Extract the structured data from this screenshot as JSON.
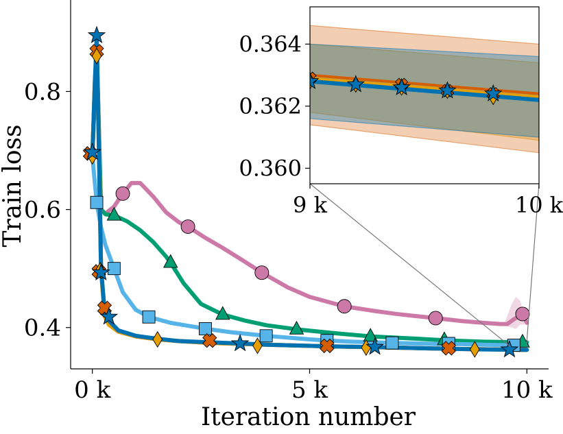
{
  "chart_data": [
    {
      "type": "line",
      "xlabel": "Iteration number",
      "ylabel": "Train loss",
      "xlim": [
        -500,
        10500
      ],
      "ylim": [
        0.33,
        0.955
      ],
      "xticks": [
        0,
        5000,
        10000
      ],
      "xtick_labels": [
        "0 k",
        "5 k",
        "10 k"
      ],
      "yticks": [
        0.4,
        0.6,
        0.8
      ],
      "ytick_labels": [
        "0.4",
        "0.6",
        "0.8"
      ],
      "grid": false,
      "legend": "none",
      "series": [
        {
          "color": "#CC79A7",
          "marker": "circle",
          "x": [
            0,
            100,
            200,
            300,
            500,
            700,
            900,
            1100,
            1400,
            1700,
            2000,
            2200,
            2600,
            3000,
            3500,
            3900,
            4500,
            5000,
            5500,
            5800,
            6500,
            7000,
            7500,
            7900,
            8500,
            9000,
            9400,
            9550,
            9700,
            9900,
            10000
          ],
          "y": [
            0.69,
            0.875,
            0.6,
            0.593,
            0.605,
            0.627,
            0.645,
            0.645,
            0.622,
            0.595,
            0.578,
            0.571,
            0.552,
            0.535,
            0.512,
            0.493,
            0.468,
            0.452,
            0.442,
            0.436,
            0.428,
            0.423,
            0.419,
            0.416,
            0.411,
            0.408,
            0.406,
            0.406,
            0.414,
            0.423,
            0.408
          ],
          "markers_x": [
            700,
            2200,
            3900,
            5800,
            7900,
            9900
          ],
          "markers_y": [
            0.627,
            0.571,
            0.493,
            0.436,
            0.416,
            0.423
          ]
        },
        {
          "color": "#009E73",
          "marker": "triangle",
          "x": [
            0,
            100,
            200,
            300,
            500,
            800,
            1100,
            1400,
            1700,
            1800,
            2100,
            2500,
            3000,
            3500,
            4000,
            4700,
            5500,
            6400,
            7500,
            8200,
            9000,
            9900,
            10000
          ],
          "y": [
            0.69,
            0.875,
            0.6,
            0.592,
            0.59,
            0.58,
            0.565,
            0.545,
            0.52,
            0.51,
            0.475,
            0.44,
            0.422,
            0.412,
            0.404,
            0.397,
            0.391,
            0.385,
            0.381,
            0.378,
            0.376,
            0.375,
            0.375
          ],
          "markers_x": [
            500,
            1800,
            3000,
            4700,
            6400,
            8100,
            9900
          ],
          "markers_y": [
            0.59,
            0.51,
            0.422,
            0.397,
            0.385,
            0.379,
            0.375
          ]
        },
        {
          "color": "#56B4E9",
          "marker": "square",
          "x": [
            0,
            100,
            200,
            300,
            500,
            700,
            1000,
            1300,
            1800,
            2600,
            3200,
            4000,
            5000,
            5400,
            6000,
            6900,
            8000,
            8500,
            9000,
            9700,
            10000
          ],
          "y": [
            0.69,
            0.612,
            0.57,
            0.54,
            0.5,
            0.46,
            0.43,
            0.418,
            0.408,
            0.398,
            0.392,
            0.386,
            0.38,
            0.378,
            0.376,
            0.374,
            0.372,
            0.372,
            0.371,
            0.37,
            0.37
          ],
          "markers_x": [
            100,
            500,
            1300,
            2600,
            4000,
            5400,
            6900,
            8200,
            9700
          ],
          "markers_y": [
            0.612,
            0.5,
            0.418,
            0.398,
            0.386,
            0.378,
            0.374,
            0.373,
            0.37
          ]
        },
        {
          "color": "#D55E00",
          "marker": "plus",
          "x": [
            0,
            60,
            100,
            150,
            200,
            280,
            380,
            600,
            1000,
            1500,
            2000,
            2700,
            4000,
            5500,
            7000,
            8200,
            9000,
            10000
          ],
          "y": [
            0.69,
            0.82,
            0.86,
            0.72,
            0.5,
            0.42,
            0.405,
            0.393,
            0.385,
            0.38,
            0.377,
            0.374,
            0.371,
            0.368,
            0.366,
            0.364,
            0.3632,
            0.3622
          ],
          "markers_x": [
            -50,
            100,
            150,
            280,
            2700,
            5400,
            8200
          ],
          "markers_y": [
            0.695,
            0.868,
            0.495,
            0.433,
            0.378,
            0.369,
            0.365
          ]
        },
        {
          "color": "#E69F00",
          "marker": "diamond",
          "x": [
            0,
            60,
            100,
            150,
            200,
            280,
            380,
            600,
            1000,
            1500,
            2000,
            2700,
            4000,
            5500,
            7000,
            8200,
            9000,
            10000
          ],
          "y": [
            0.69,
            0.82,
            0.86,
            0.72,
            0.5,
            0.42,
            0.405,
            0.393,
            0.385,
            0.38,
            0.377,
            0.374,
            0.371,
            0.368,
            0.366,
            0.364,
            0.3632,
            0.3622
          ],
          "markers_x": [
            0,
            100,
            180,
            1500,
            3800,
            6300,
            8800
          ],
          "markers_y": [
            0.69,
            0.86,
            0.497,
            0.38,
            0.369,
            0.366,
            0.363
          ]
        },
        {
          "color": "#0072B2",
          "marker": "star",
          "x": [
            0,
            50,
            100,
            150,
            200,
            280,
            380,
            600,
            1000,
            1500,
            2000,
            2700,
            3400,
            4000,
            5500,
            6500,
            7000,
            8200,
            9000,
            9600,
            10000
          ],
          "y": [
            0.69,
            0.8,
            0.895,
            0.7,
            0.5,
            0.43,
            0.412,
            0.395,
            0.386,
            0.381,
            0.377,
            0.375,
            0.373,
            0.371,
            0.368,
            0.367,
            0.366,
            0.364,
            0.363,
            0.3626,
            0.3622
          ],
          "markers_x": [
            0,
            100,
            200,
            380,
            3400,
            6500,
            9600
          ],
          "markers_y": [
            0.697,
            0.895,
            0.493,
            0.418,
            0.373,
            0.367,
            0.3626
          ]
        }
      ]
    },
    {
      "type": "line",
      "xlim": [
        9000,
        10000
      ],
      "ylim": [
        0.3595,
        0.3652
      ],
      "xticks": [
        9000,
        10000
      ],
      "xtick_labels": [
        "9 k",
        "10 k"
      ],
      "yticks": [
        0.36,
        0.362,
        0.364
      ],
      "ytick_labels": [
        "0.360",
        "0.362",
        "0.364"
      ],
      "bands": [
        {
          "color": "#E69F00",
          "x": [
            9000,
            10000
          ],
          "lower": [
            0.3618,
            0.3609
          ],
          "upper": [
            0.364,
            0.3634
          ]
        },
        {
          "color": "#D55E00",
          "x": [
            9000,
            10000
          ],
          "lower": [
            0.3614,
            0.3605
          ],
          "upper": [
            0.3646,
            0.364
          ]
        },
        {
          "color": "#0072B2",
          "x": [
            9000,
            10000
          ],
          "lower": [
            0.3616,
            0.361
          ],
          "upper": [
            0.364,
            0.3636
          ]
        }
      ],
      "series": [
        {
          "color": "#D55E00",
          "marker": "plus",
          "x": [
            9000,
            10000
          ],
          "y": [
            0.363,
            0.3624
          ],
          "markers_x": [
            9000,
            9400,
            9600,
            9800
          ],
          "markers_y": [
            0.3629,
            0.3627,
            0.3625,
            0.3624
          ]
        },
        {
          "color": "#E69F00",
          "marker": "diamond",
          "x": [
            9000,
            10000
          ],
          "y": [
            0.3629,
            0.3623
          ],
          "markers_x": [
            9000,
            9200,
            9400,
            9600,
            9800
          ],
          "markers_y": [
            0.3628,
            0.3627,
            0.3626,
            0.3625,
            0.3623
          ]
        },
        {
          "color": "#0072B2",
          "marker": "star",
          "x": [
            9000,
            10000
          ],
          "y": [
            0.3628,
            0.3622
          ],
          "markers_x": [
            9000,
            9200,
            9400,
            9600,
            9800
          ],
          "markers_y": [
            0.3628,
            0.3627,
            0.3626,
            0.3625,
            0.3624
          ]
        }
      ]
    }
  ]
}
